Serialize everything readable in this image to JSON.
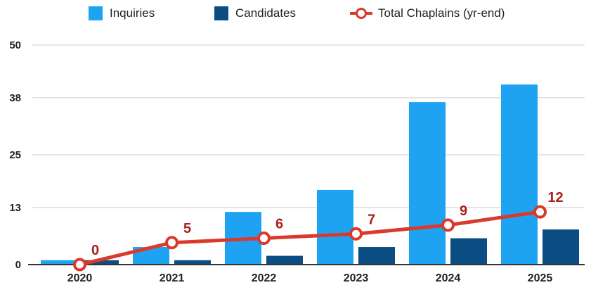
{
  "chart_data": {
    "type": "bar",
    "categories": [
      "2020",
      "2021",
      "2022",
      "2023",
      "2024",
      "2025"
    ],
    "series": [
      {
        "name": "Inquiries",
        "type": "bar",
        "color": "#1ea3f3",
        "values": [
          1,
          4,
          12,
          17,
          37,
          41
        ]
      },
      {
        "name": "Candidates",
        "type": "bar",
        "color": "#0b4d83",
        "values": [
          1,
          1,
          2,
          4,
          6,
          8
        ]
      },
      {
        "name": "Total Chaplains (yr-end)",
        "type": "line",
        "color": "#d93a2b",
        "values": [
          0,
          5,
          6,
          7,
          9,
          12
        ],
        "data_labels": [
          "0",
          "5",
          "6",
          "7",
          "9",
          "12"
        ]
      }
    ],
    "yticks": [
      "0",
      "13",
      "25",
      "38",
      "50"
    ],
    "ylim": [
      0,
      50
    ],
    "grid": true,
    "legend_position": "top"
  }
}
